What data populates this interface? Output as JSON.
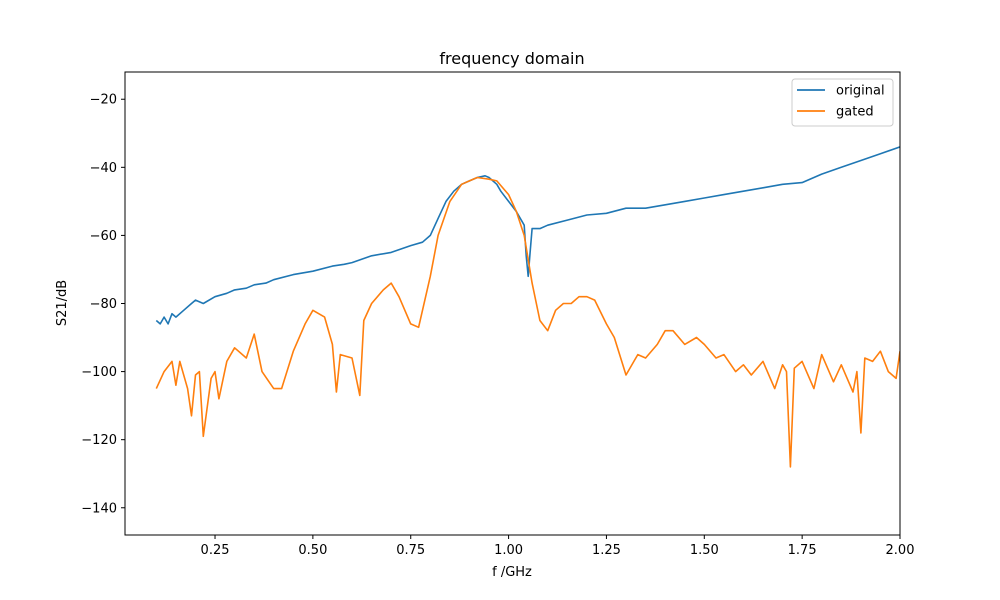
{
  "chart_data": {
    "type": "line",
    "title": "frequency domain",
    "xlabel": "f /GHz",
    "ylabel": "S21/dB",
    "xlim": [
      0.02,
      2.0
    ],
    "ylim": [
      -148,
      -12
    ],
    "x_ticks": [
      0.25,
      0.5,
      0.75,
      1.0,
      1.25,
      1.5,
      1.75,
      2.0
    ],
    "x_tick_labels": [
      "0.25",
      "0.50",
      "0.75",
      "1.00",
      "1.25",
      "1.50",
      "1.75",
      "2.00"
    ],
    "y_ticks": [
      -20,
      -40,
      -60,
      -80,
      -100,
      -120,
      -140
    ],
    "y_tick_labels": [
      "−20",
      "−40",
      "−60",
      "−80",
      "−100",
      "−120",
      "−140"
    ],
    "grid": false,
    "legend_position": "top-right",
    "series": [
      {
        "name": "original",
        "color": "#1f77b4",
        "x": [
          0.1,
          0.11,
          0.12,
          0.13,
          0.14,
          0.15,
          0.17,
          0.19,
          0.2,
          0.22,
          0.25,
          0.28,
          0.3,
          0.33,
          0.35,
          0.38,
          0.4,
          0.45,
          0.5,
          0.55,
          0.58,
          0.6,
          0.65,
          0.7,
          0.75,
          0.78,
          0.8,
          0.82,
          0.84,
          0.86,
          0.88,
          0.9,
          0.92,
          0.94,
          0.95,
          0.96,
          0.97,
          0.98,
          1.0,
          1.02,
          1.03,
          1.04,
          1.045,
          1.05,
          1.055,
          1.06,
          1.08,
          1.1,
          1.15,
          1.2,
          1.25,
          1.3,
          1.35,
          1.4,
          1.45,
          1.5,
          1.55,
          1.6,
          1.65,
          1.7,
          1.75,
          1.8,
          1.85,
          1.9,
          1.95,
          2.0
        ],
        "y": [
          -85,
          -86,
          -84,
          -86,
          -83,
          -84,
          -82,
          -80,
          -79,
          -80,
          -78,
          -77,
          -76,
          -75.5,
          -74.5,
          -74,
          -73,
          -71.5,
          -70.5,
          -69,
          -68.5,
          -68,
          -66,
          -65,
          -63,
          -62,
          -60,
          -55,
          -50,
          -47,
          -45,
          -44,
          -43,
          -42.5,
          -43,
          -44,
          -45,
          -47,
          -50,
          -53,
          -55,
          -57,
          -66,
          -72,
          -65,
          -58,
          -58,
          -57,
          -55.5,
          -54,
          -53.5,
          -52,
          -52,
          -51,
          -50,
          -49,
          -48,
          -47,
          -46,
          -45,
          -44.5,
          -42,
          -40,
          -38,
          -36,
          -34
        ]
      },
      {
        "name": "gated",
        "color": "#ff7f0e",
        "x": [
          0.1,
          0.12,
          0.14,
          0.15,
          0.16,
          0.18,
          0.19,
          0.2,
          0.21,
          0.22,
          0.24,
          0.25,
          0.26,
          0.28,
          0.3,
          0.33,
          0.35,
          0.37,
          0.4,
          0.42,
          0.45,
          0.48,
          0.5,
          0.53,
          0.55,
          0.56,
          0.57,
          0.6,
          0.62,
          0.63,
          0.65,
          0.68,
          0.7,
          0.72,
          0.75,
          0.77,
          0.78,
          0.8,
          0.82,
          0.85,
          0.88,
          0.9,
          0.92,
          0.95,
          0.97,
          1.0,
          1.02,
          1.04,
          1.06,
          1.08,
          1.1,
          1.12,
          1.14,
          1.16,
          1.18,
          1.2,
          1.22,
          1.25,
          1.27,
          1.3,
          1.33,
          1.35,
          1.38,
          1.4,
          1.42,
          1.45,
          1.48,
          1.5,
          1.53,
          1.55,
          1.58,
          1.6,
          1.62,
          1.65,
          1.68,
          1.7,
          1.71,
          1.72,
          1.73,
          1.75,
          1.78,
          1.8,
          1.83,
          1.85,
          1.88,
          1.89,
          1.9,
          1.91,
          1.93,
          1.95,
          1.97,
          1.99,
          2.0
        ],
        "y": [
          -105,
          -100,
          -97,
          -104,
          -97,
          -105,
          -113,
          -101,
          -100,
          -119,
          -102,
          -100,
          -108,
          -97,
          -93,
          -96,
          -89,
          -100,
          -105,
          -105,
          -94,
          -86,
          -82,
          -84,
          -92,
          -106,
          -95,
          -96,
          -107,
          -85,
          -80,
          -76,
          -74,
          -78,
          -86,
          -87,
          -82,
          -72,
          -60,
          -50,
          -45,
          -44,
          -43,
          -43.5,
          -44,
          -48,
          -53,
          -60,
          -74,
          -85,
          -88,
          -82,
          -80,
          -80,
          -78,
          -78,
          -79,
          -86,
          -90,
          -101,
          -95,
          -96,
          -92,
          -88,
          -88,
          -92,
          -90,
          -92,
          -96,
          -95,
          -100,
          -98,
          -101,
          -97,
          -105,
          -98,
          -100,
          -128,
          -99,
          -97,
          -105,
          -95,
          -103,
          -98,
          -106,
          -100,
          -118,
          -96,
          -97,
          -94,
          -100,
          -102,
          -94
        ]
      }
    ]
  }
}
